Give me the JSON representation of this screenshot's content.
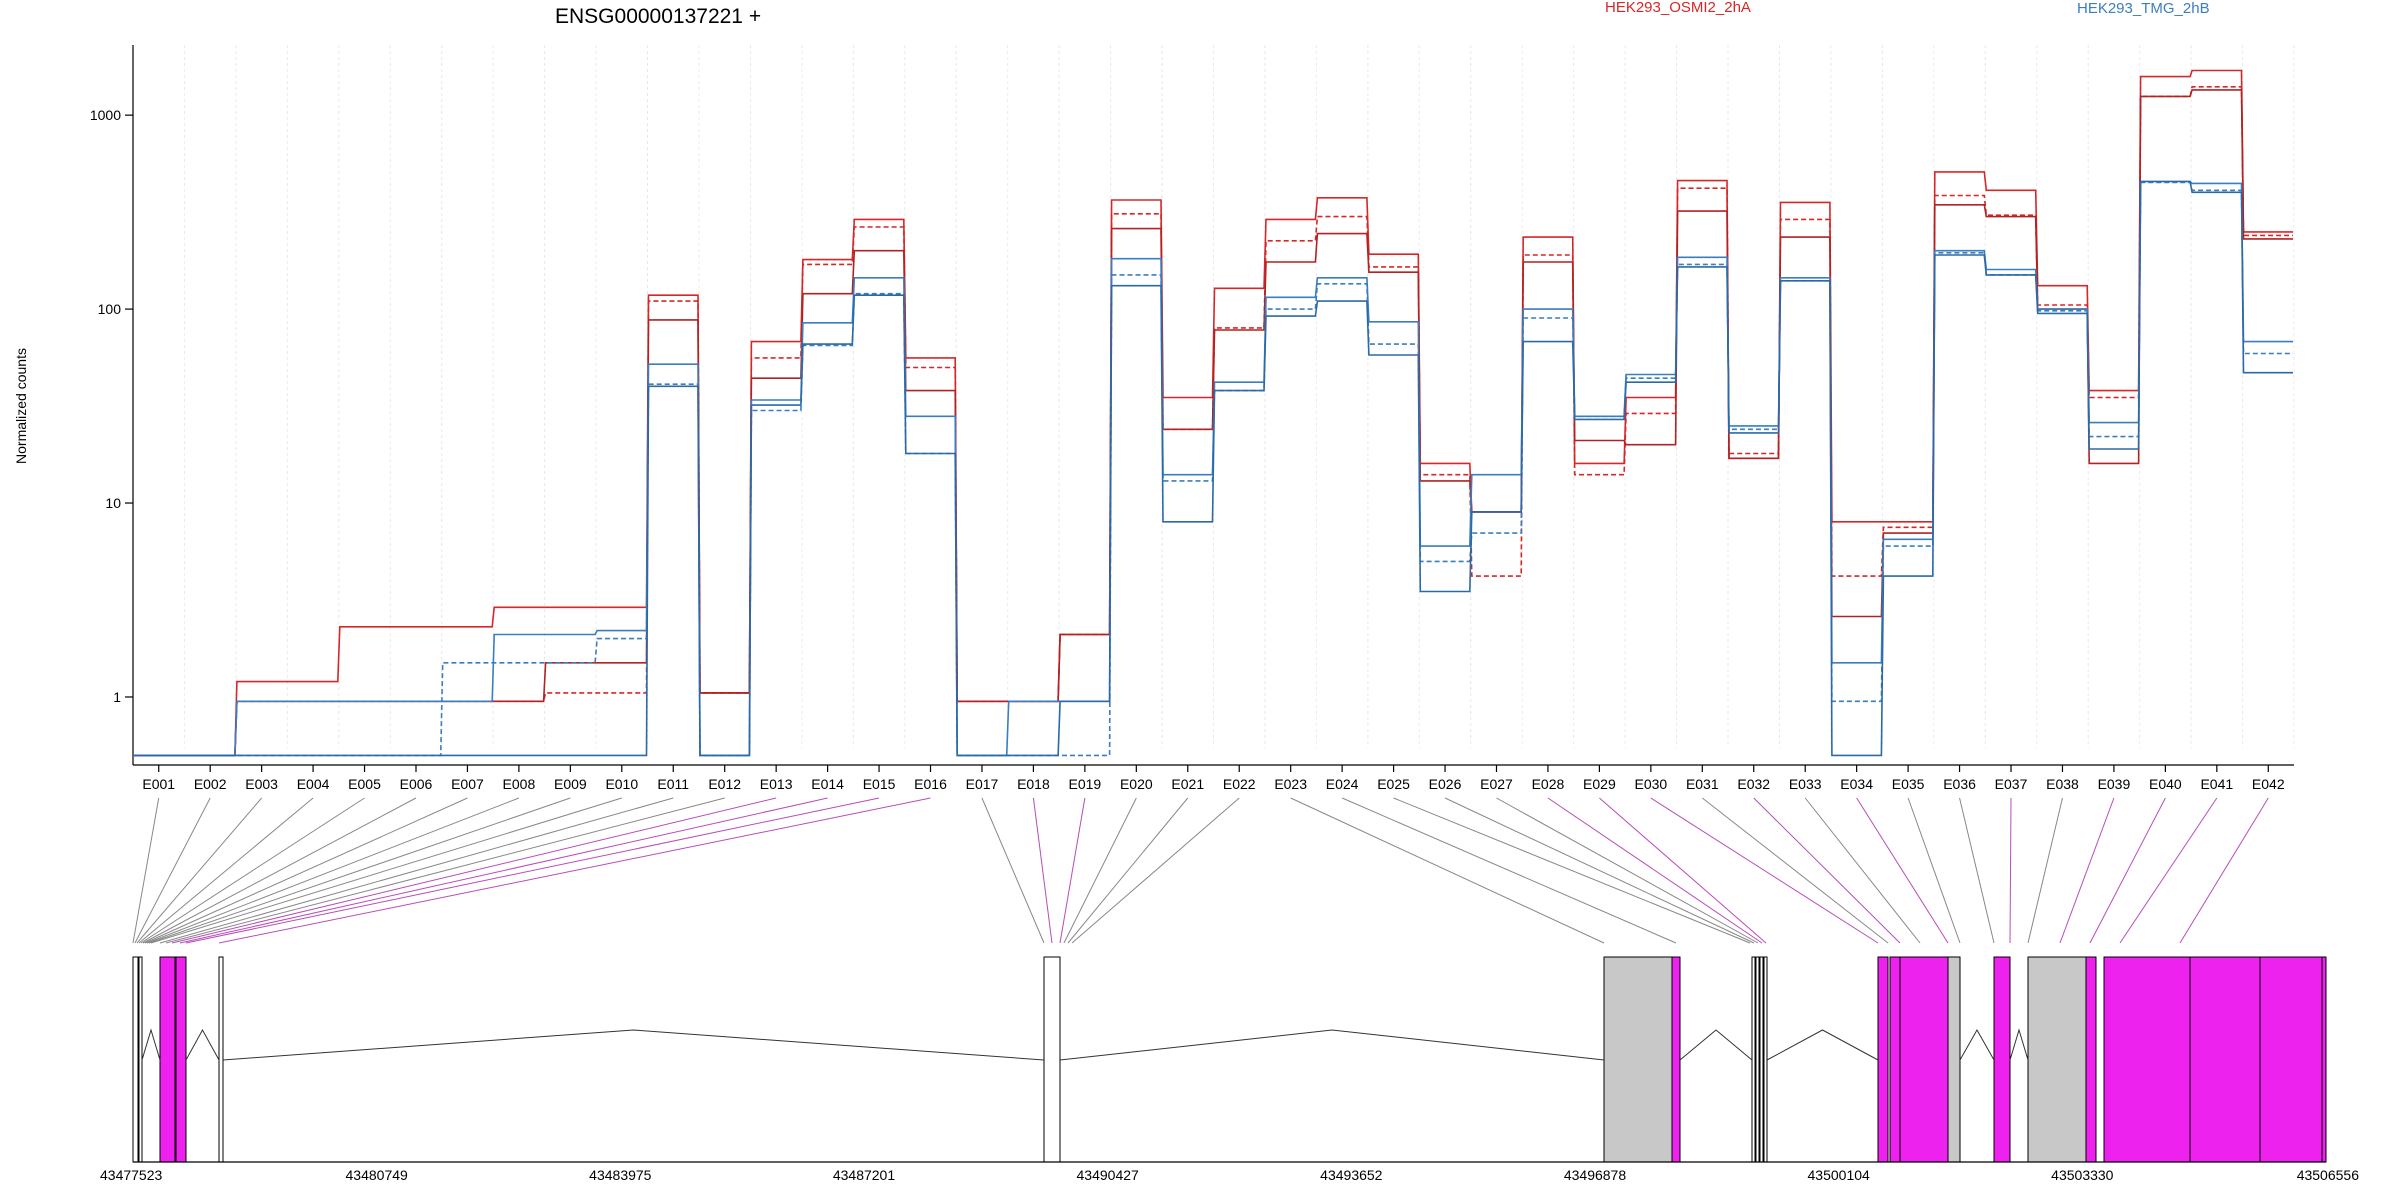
{
  "title": "ENSG00000137221 +",
  "ylabel": "Normalized counts",
  "chart_data": {
    "type": "line",
    "title": "ENSG00000137221 +",
    "ylabel": "Normalized counts",
    "yscale": "log",
    "ylim": [
      0.6,
      2300
    ],
    "yticks": [
      {
        "v": 1,
        "label": "1"
      },
      {
        "v": 10,
        "label": "10"
      },
      {
        "v": 100,
        "label": "100"
      },
      {
        "v": 1000,
        "label": "1000"
      }
    ],
    "categories": [
      "E001",
      "E002",
      "E003",
      "E004",
      "E005",
      "E006",
      "E007",
      "E008",
      "E009",
      "E010",
      "E011",
      "E012",
      "E013",
      "E014",
      "E015",
      "E016",
      "E017",
      "E018",
      "E019",
      "E020",
      "E021",
      "E022",
      "E023",
      "E024",
      "E025",
      "E026",
      "E027",
      "E028",
      "E029",
      "E030",
      "E031",
      "E032",
      "E033",
      "E034",
      "E035",
      "E036",
      "E037",
      "E038",
      "E039",
      "E040",
      "E041",
      "E042"
    ],
    "legend": [
      {
        "name": "HEK293_OSMI2_2hA",
        "color": "#d62728"
      },
      {
        "name": "HEK293_TMG_2hB",
        "color": "#3a7ebf"
      }
    ],
    "series": [
      {
        "group": "HEK293_OSMI2_2hA",
        "style": "solid",
        "color": "#d62728",
        "values": [
          0.5,
          0.5,
          1.2,
          1.2,
          2.3,
          2.3,
          2.3,
          2.9,
          2.9,
          2.9,
          118,
          1.05,
          68,
          180,
          290,
          56,
          0.95,
          0.95,
          2.1,
          365,
          35,
          128,
          290,
          375,
          192,
          16,
          9,
          235,
          16,
          35,
          460,
          17,
          355,
          8,
          8,
          510,
          410,
          132,
          38,
          1580,
          1700,
          250
        ]
      },
      {
        "group": "HEK293_OSMI2_2hA",
        "style": "dashed",
        "color": "#d62728",
        "values": [
          0.5,
          0.5,
          0.95,
          0.95,
          0.95,
          0.95,
          0.95,
          0.95,
          1.05,
          1.05,
          110,
          1.05,
          56,
          170,
          265,
          50,
          0.95,
          0.95,
          2.1,
          310,
          24,
          80,
          225,
          300,
          165,
          14,
          4.2,
          190,
          14,
          29,
          420,
          18,
          290,
          4.2,
          7.5,
          385,
          305,
          105,
          35,
          1250,
          1400,
          240
        ]
      },
      {
        "group": "HEK293_OSMI2_2hA",
        "style": "solid",
        "color": "#b22222",
        "values": [
          0.5,
          0.5,
          0.95,
          0.95,
          0.95,
          0.95,
          0.95,
          0.95,
          1.5,
          1.5,
          88,
          1.05,
          44,
          120,
          200,
          38,
          0.95,
          0.95,
          2.1,
          260,
          24,
          78,
          175,
          245,
          155,
          13,
          9,
          175,
          21,
          20,
          320,
          17,
          235,
          2.6,
          7,
          345,
          300,
          100,
          16,
          1250,
          1350,
          230
        ]
      },
      {
        "group": "HEK293_TMG_2hB",
        "style": "solid",
        "color": "#3a7ebf",
        "values": [
          0.5,
          0.5,
          0.95,
          0.95,
          0.95,
          0.95,
          0.95,
          2.1,
          2.1,
          2.2,
          52,
          0.5,
          34,
          85,
          145,
          28,
          0.5,
          0.95,
          0.95,
          182,
          14,
          42,
          115,
          145,
          86,
          6,
          14,
          100,
          28,
          46,
          185,
          25,
          145,
          1.5,
          6.5,
          200,
          160,
          100,
          26,
          455,
          445,
          68
        ]
      },
      {
        "group": "HEK293_TMG_2hB",
        "style": "dashed",
        "color": "#3a7ebf",
        "values": [
          0.5,
          0.5,
          0.5,
          0.5,
          0.5,
          0.5,
          1.5,
          1.5,
          1.5,
          2.0,
          41,
          0.5,
          30,
          65,
          120,
          18,
          0.5,
          0.5,
          0.5,
          150,
          13,
          38,
          100,
          135,
          66,
          5,
          7,
          90,
          28,
          44,
          170,
          24,
          140,
          0.95,
          6,
          195,
          150,
          98,
          22,
          450,
          410,
          59
        ]
      },
      {
        "group": "HEK293_TMG_2hB",
        "style": "solid",
        "color": "#2c6aa6",
        "values": [
          0.5,
          0.5,
          0.5,
          0.5,
          0.5,
          0.5,
          0.5,
          0.5,
          0.5,
          0.5,
          40,
          0.5,
          32,
          66,
          118,
          18,
          0.5,
          0.5,
          0.95,
          132,
          8,
          38,
          92,
          110,
          58,
          3.5,
          9,
          68,
          27,
          42,
          165,
          23,
          140,
          0.5,
          4.2,
          190,
          150,
          95,
          19,
          455,
          400,
          47
        ]
      }
    ]
  },
  "gene_model": {
    "axis_ticks": [
      "43477523",
      "43480749",
      "43483975",
      "43487201",
      "43490427",
      "43493652",
      "43496878",
      "43500104",
      "43503330",
      "43506556"
    ],
    "exon_fill_colors": {
      "plain": "#ffffff",
      "featured": "#ee22ee",
      "noncoding": "#c8c8c8"
    }
  }
}
